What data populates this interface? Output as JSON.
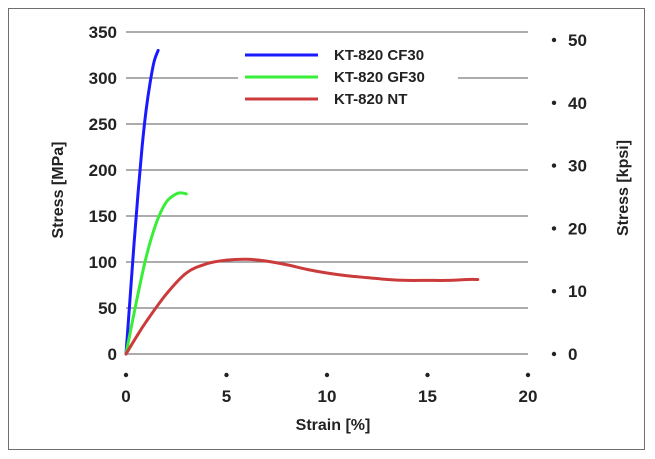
{
  "chart_data": {
    "type": "line",
    "title": "",
    "xlabel": "Strain [%]",
    "ylabel": "Stress [MPa]",
    "ylabel_right": "Stress [kpsi]",
    "xlim": [
      0,
      20
    ],
    "ylim": [
      0,
      350
    ],
    "ylim_right": [
      0,
      50
    ],
    "x_ticks": [
      "0",
      "5",
      "10",
      "15",
      "20"
    ],
    "y_ticks": [
      "0",
      "50",
      "100",
      "150",
      "200",
      "250",
      "300",
      "350"
    ],
    "y_ticks_right": [
      "0",
      "10",
      "20",
      "30",
      "40",
      "50"
    ],
    "grid": "horizontal",
    "legend_position": "top-center",
    "series": [
      {
        "name": "KT-820 CF30",
        "color": "#1a1aff",
        "x": [
          0,
          0.2,
          0.4,
          0.6,
          0.8,
          1.0,
          1.2,
          1.4,
          1.6
        ],
        "y": [
          0,
          60,
          120,
          175,
          225,
          265,
          295,
          318,
          330
        ]
      },
      {
        "name": "KT-820 GF30",
        "color": "#39ee39",
        "x": [
          0,
          0.5,
          1.0,
          1.5,
          2.0,
          2.5,
          2.8,
          3.0
        ],
        "y": [
          0,
          55,
          105,
          142,
          165,
          174,
          175,
          174
        ]
      },
      {
        "name": "KT-820 NT",
        "color": "#cc3b3b",
        "x": [
          0,
          0.5,
          1,
          2,
          3,
          4,
          5,
          6,
          7,
          8,
          9,
          10,
          11,
          12,
          13,
          14,
          15,
          16,
          17,
          17.5
        ],
        "y": [
          0,
          18,
          35,
          65,
          88,
          98,
          102,
          103,
          101,
          97,
          92,
          88,
          85,
          83,
          81,
          80,
          80,
          80,
          81,
          81
        ]
      }
    ]
  }
}
